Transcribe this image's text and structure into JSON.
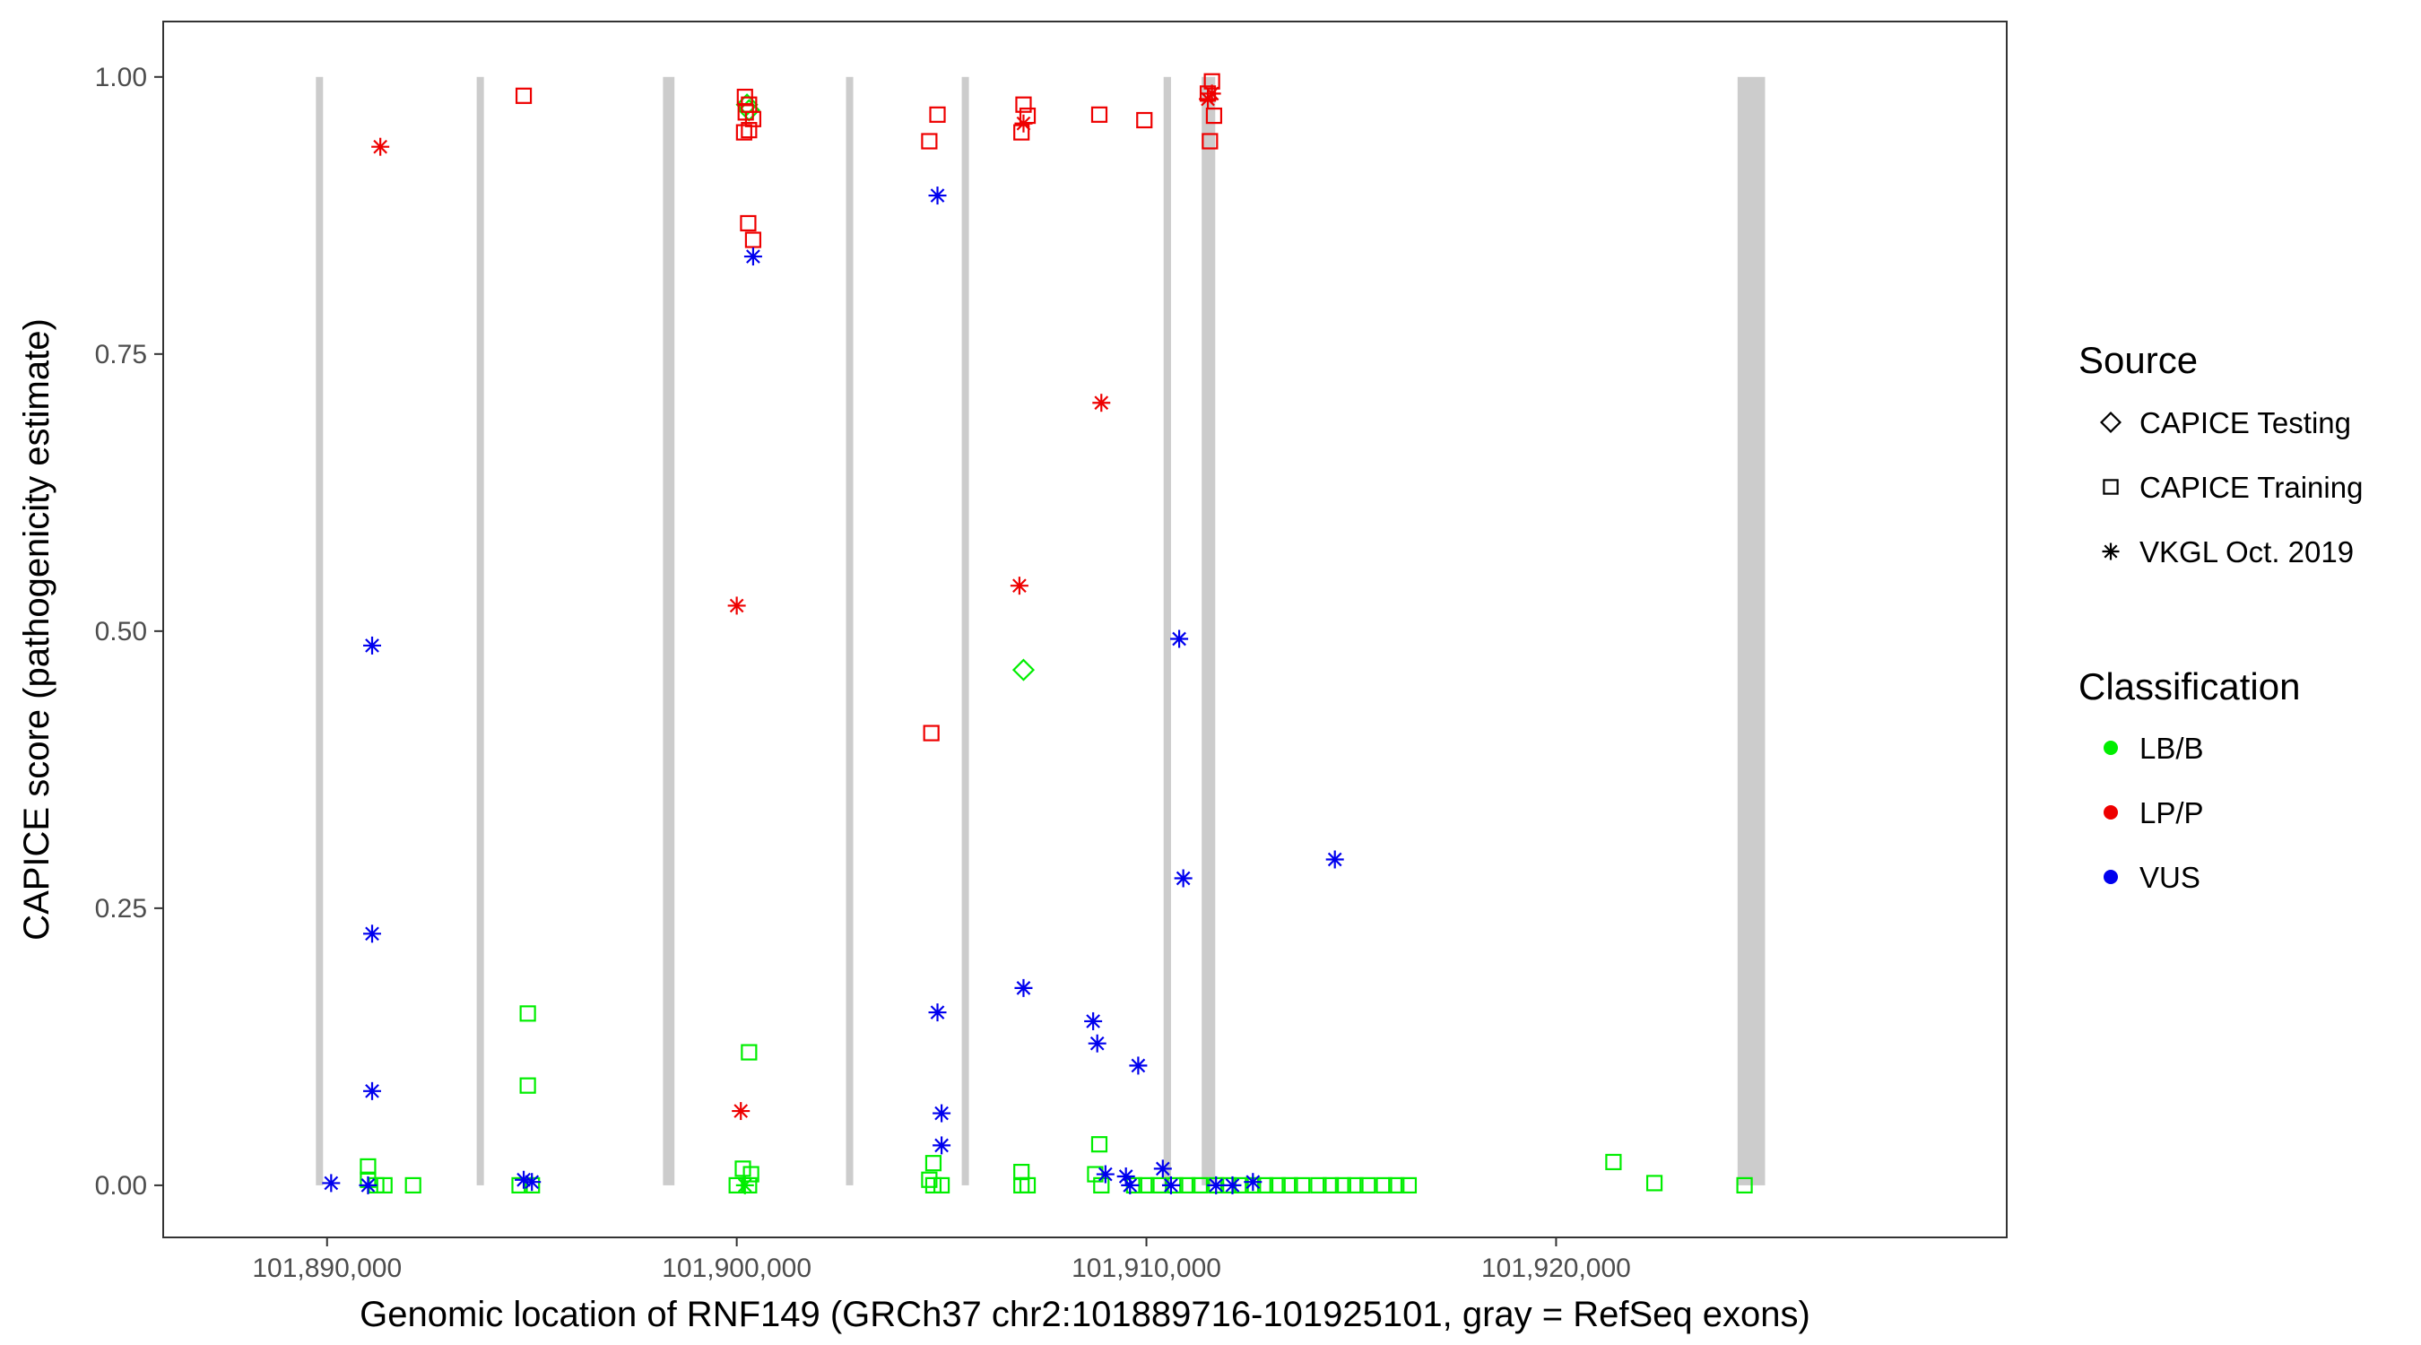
{
  "chart_data": {
    "type": "scatter",
    "title": "",
    "xlabel": "Genomic location of RNF149 (GRCh37 chr2:101889716-101925101, gray = RefSeq exons)",
    "ylabel": "CAPICE score (pathogenicity estimate)",
    "xlim": [
      101886000,
      101931000
    ],
    "ylim": [
      -0.047,
      1.05
    ],
    "x_ticks": [
      101890000,
      101900000,
      101910000,
      101920000
    ],
    "x_tick_labels": [
      "101,890,000",
      "101,900,000",
      "101,910,000",
      "101,920,000"
    ],
    "y_ticks": [
      0.0,
      0.25,
      0.5,
      0.75,
      1.0
    ],
    "y_tick_labels": [
      "0.00",
      "0.25",
      "0.50",
      "0.75",
      "1.00"
    ],
    "grid": false,
    "exons": [
      [
        101889750,
        101889880
      ],
      [
        101893680,
        101893800
      ],
      [
        101898200,
        101898480
      ],
      [
        101902680,
        101902830
      ],
      [
        101905520,
        101905640
      ],
      [
        101910420,
        101910600
      ],
      [
        101911350,
        101911680
      ],
      [
        101924430,
        101925101
      ]
    ],
    "exon_color": "#cccccc",
    "legend_placement": "right",
    "legend": {
      "source_title": "Source",
      "source_items": [
        {
          "label": "CAPICE Testing",
          "shape": "diamond"
        },
        {
          "label": "CAPICE Training",
          "shape": "square"
        },
        {
          "label": "VKGL Oct. 2019",
          "shape": "asterisk"
        }
      ],
      "class_title": "Classification",
      "class_items": [
        {
          "label": "LB/B",
          "color": "#00ee00"
        },
        {
          "label": "LP/P",
          "color": "#ee0000"
        },
        {
          "label": "VUS",
          "color": "#0000ee"
        }
      ]
    },
    "colors": {
      "LB/B": "#00ee00",
      "LP/P": "#ee0000",
      "VUS": "#0000ee"
    },
    "series": [
      {
        "source": "CAPICE Testing",
        "classification": "LB/B",
        "shape": "diamond",
        "points": [
          [
            101900250,
            0.975
          ],
          [
            101900300,
            0.97
          ],
          [
            101907000,
            0.465
          ]
        ]
      },
      {
        "source": "CAPICE Training",
        "classification": "LP/P",
        "shape": "square",
        "points": [
          [
            101894800,
            0.983
          ],
          [
            101900200,
            0.982
          ],
          [
            101900300,
            0.975
          ],
          [
            101900220,
            0.968
          ],
          [
            101900400,
            0.962
          ],
          [
            101900180,
            0.95
          ],
          [
            101900300,
            0.952
          ],
          [
            101900280,
            0.868
          ],
          [
            101900400,
            0.853
          ],
          [
            101904900,
            0.966
          ],
          [
            101904700,
            0.942
          ],
          [
            101904750,
            0.408
          ],
          [
            101907000,
            0.975
          ],
          [
            101907100,
            0.965
          ],
          [
            101906950,
            0.95
          ],
          [
            101908850,
            0.966
          ],
          [
            101909950,
            0.961
          ],
          [
            101911600,
            0.996
          ],
          [
            101911500,
            0.985
          ],
          [
            101911650,
            0.965
          ],
          [
            101911550,
            0.942
          ]
        ]
      },
      {
        "source": "CAPICE Training",
        "classification": "LB/B",
        "shape": "square",
        "points": [
          [
            101891000,
            0.017
          ],
          [
            101891000,
            0.005
          ],
          [
            101891200,
            0.0
          ],
          [
            101891400,
            0.0
          ],
          [
            101892100,
            0.0
          ],
          [
            101894900,
            0.155
          ],
          [
            101894900,
            0.09
          ],
          [
            101894700,
            0.0
          ],
          [
            101895000,
            0.0
          ],
          [
            101900300,
            0.12
          ],
          [
            101900150,
            0.015
          ],
          [
            101900350,
            0.01
          ],
          [
            101900000,
            0.0
          ],
          [
            101900300,
            0.0
          ],
          [
            101904800,
            0.02
          ],
          [
            101904700,
            0.005
          ],
          [
            101904800,
            0.0
          ],
          [
            101905000,
            0.0
          ],
          [
            101906950,
            0.012
          ],
          [
            101906950,
            0.0
          ],
          [
            101907100,
            0.0
          ],
          [
            101908850,
            0.037
          ],
          [
            101908750,
            0.01
          ],
          [
            101908900,
            0.0
          ],
          [
            101909700,
            0.0
          ],
          [
            101910000,
            0.0
          ],
          [
            101910300,
            0.0
          ],
          [
            101910700,
            0.0
          ],
          [
            101911000,
            0.0
          ],
          [
            101911300,
            0.0
          ],
          [
            101911700,
            0.0
          ],
          [
            101912000,
            0.0
          ],
          [
            101912300,
            0.0
          ],
          [
            101912600,
            0.0
          ],
          [
            101912900,
            0.0
          ],
          [
            101913200,
            0.0
          ],
          [
            101913500,
            0.0
          ],
          [
            101913800,
            0.0
          ],
          [
            101914200,
            0.0
          ],
          [
            101914500,
            0.0
          ],
          [
            101914800,
            0.0
          ],
          [
            101915100,
            0.0
          ],
          [
            101915400,
            0.0
          ],
          [
            101915800,
            0.0
          ],
          [
            101916100,
            0.0
          ],
          [
            101916400,
            0.0
          ],
          [
            101921400,
            0.021
          ],
          [
            101922400,
            0.002
          ],
          [
            101924600,
            0.0
          ]
        ]
      },
      {
        "source": "VKGL Oct. 2019",
        "classification": "LP/P",
        "shape": "asterisk",
        "points": [
          [
            101891300,
            0.937
          ],
          [
            101900000,
            0.523
          ],
          [
            101900100,
            0.067
          ],
          [
            101906900,
            0.541
          ],
          [
            101908900,
            0.706
          ],
          [
            101907000,
            0.958
          ],
          [
            101911500,
            0.98
          ],
          [
            101911600,
            0.985
          ]
        ]
      },
      {
        "source": "VKGL Oct. 2019",
        "classification": "VUS",
        "shape": "asterisk",
        "points": [
          [
            101891100,
            0.487
          ],
          [
            101891100,
            0.227
          ],
          [
            101891100,
            0.085
          ],
          [
            101890100,
            0.002
          ],
          [
            101891000,
            0.0
          ],
          [
            101894800,
            0.005
          ],
          [
            101895000,
            0.003
          ],
          [
            101900400,
            0.838
          ],
          [
            101904900,
            0.893
          ],
          [
            101904900,
            0.156
          ],
          [
            101905000,
            0.065
          ],
          [
            101905000,
            0.036
          ],
          [
            101907000,
            0.178
          ],
          [
            101908700,
            0.148
          ],
          [
            101908800,
            0.128
          ],
          [
            101909000,
            0.01
          ],
          [
            101909500,
            0.008
          ],
          [
            101909600,
            0.0
          ],
          [
            101909800,
            0.108
          ],
          [
            101910400,
            0.015
          ],
          [
            101910600,
            0.0
          ],
          [
            101910800,
            0.493
          ],
          [
            101910900,
            0.277
          ],
          [
            101911700,
            0.0
          ],
          [
            101912100,
            0.0
          ],
          [
            101912600,
            0.003
          ],
          [
            101914600,
            0.294
          ]
        ]
      },
      {
        "source": "VKGL Oct. 2019",
        "classification": "LB/B",
        "shape": "asterisk",
        "points": [
          [
            101900200,
            0.0
          ]
        ]
      }
    ]
  }
}
